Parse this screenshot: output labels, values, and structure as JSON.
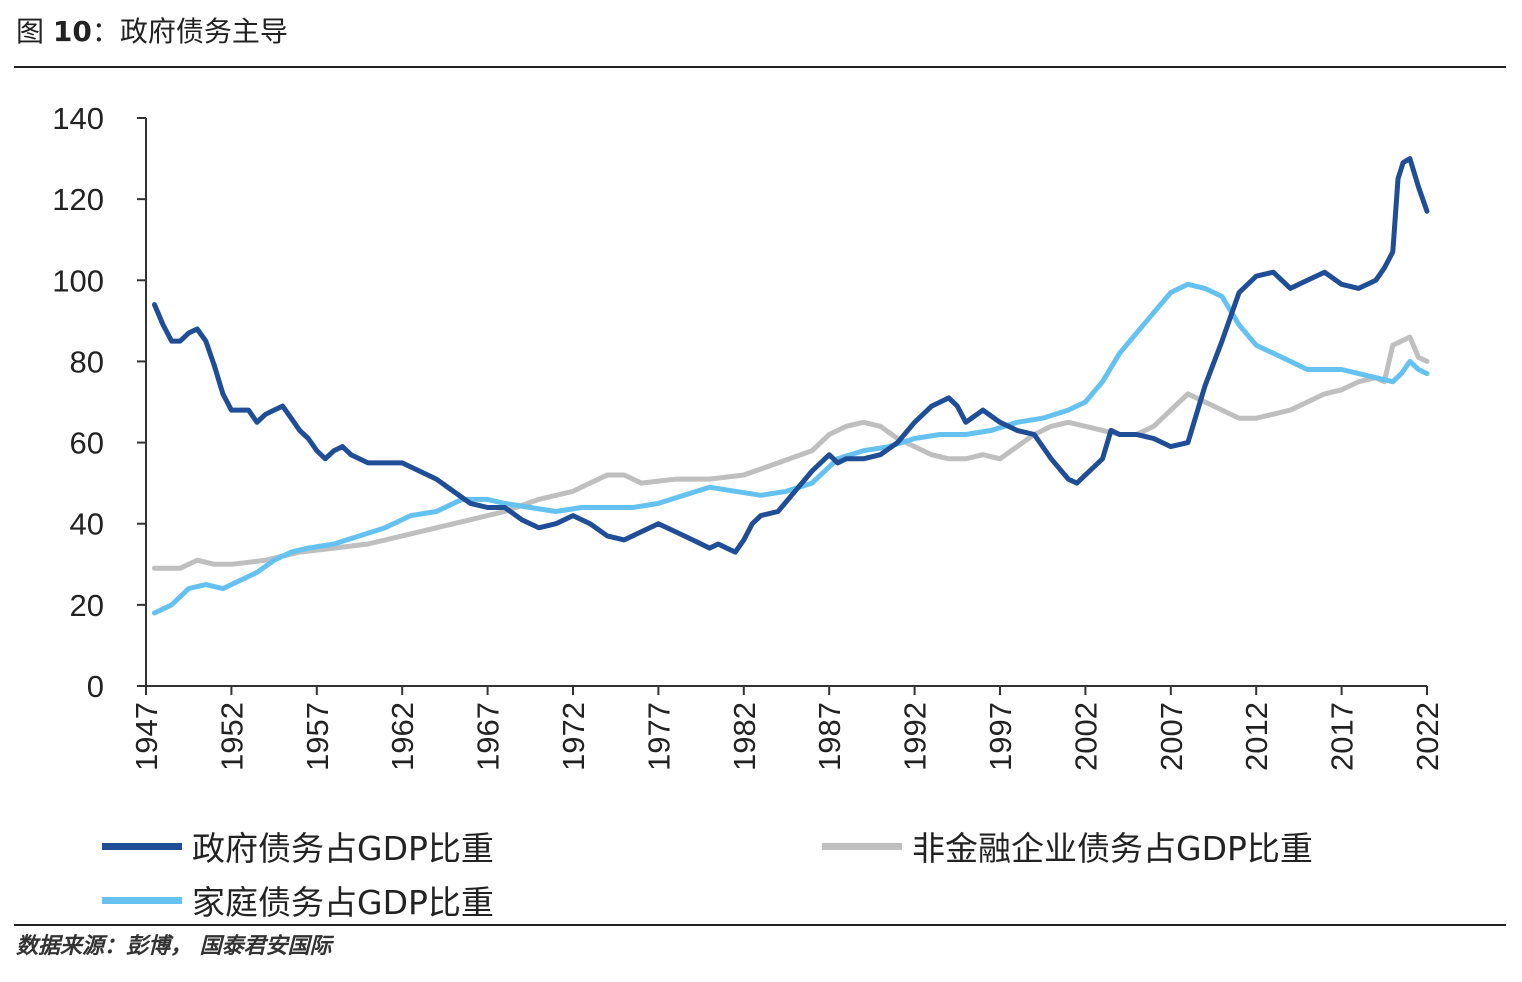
{
  "figure": {
    "label": "图",
    "number": "10",
    "separator": "：",
    "title": "政府债务主导",
    "source": "数据来源：彭博， 国泰君安国际"
  },
  "chart_data": {
    "type": "line",
    "title": "政府债务主导",
    "xlabel": "",
    "ylabel": "",
    "xlim": [
      1947,
      2022
    ],
    "ylim": [
      0,
      140
    ],
    "y_ticks": [
      0,
      20,
      40,
      60,
      80,
      100,
      120,
      140
    ],
    "x_ticks": [
      "1947",
      "1952",
      "1957",
      "1962",
      "1967",
      "1972",
      "1977",
      "1982",
      "1987",
      "1992",
      "1997",
      "2002",
      "2007",
      "2012",
      "2017",
      "2022"
    ],
    "grid": false,
    "legend_position": "bottom",
    "series": [
      {
        "name": "政府债务占GDP比重",
        "color": "#1F4E96",
        "x": [
          1947.5,
          1948,
          1948.5,
          1949,
          1949.5,
          1950,
          1950.5,
          1951,
          1951.5,
          1952,
          1952.5,
          1953,
          1953.5,
          1954,
          1954.5,
          1955,
          1955.5,
          1956,
          1956.5,
          1957,
          1957.5,
          1958,
          1958.5,
          1959,
          1960,
          1961,
          1962,
          1963,
          1964,
          1965,
          1966,
          1967,
          1968,
          1969,
          1970,
          1971,
          1972,
          1973,
          1974,
          1975,
          1976,
          1977,
          1978,
          1979,
          1980,
          1980.5,
          1981,
          1981.5,
          1982,
          1982.5,
          1983,
          1984,
          1985,
          1986,
          1987,
          1987.5,
          1988,
          1989,
          1990,
          1991,
          1992,
          1993,
          1994,
          1994.5,
          1995,
          1996,
          1997,
          1998,
          1999,
          2000,
          2001,
          2001.5,
          2002,
          2003,
          2003.5,
          2004,
          2005,
          2006,
          2007,
          2008,
          2009,
          2010,
          2011,
          2012,
          2013,
          2014,
          2015,
          2016,
          2017,
          2018,
          2019,
          2019.5,
          2020,
          2020.3,
          2020.6,
          2021,
          2021.5,
          2022
        ],
        "values": [
          94,
          89,
          85,
          85,
          87,
          88,
          85,
          79,
          72,
          68,
          68,
          68,
          65,
          67,
          68,
          69,
          66,
          63,
          61,
          58,
          56,
          58,
          59,
          57,
          55,
          55,
          55,
          53,
          51,
          48,
          45,
          44,
          44,
          41,
          39,
          40,
          42,
          40,
          37,
          36,
          38,
          40,
          38,
          36,
          34,
          35,
          34,
          33,
          36,
          40,
          42,
          43,
          48,
          53,
          57,
          55,
          56,
          56,
          57,
          60,
          65,
          69,
          71,
          69,
          65,
          68,
          65,
          63,
          62,
          56,
          51,
          50,
          52,
          56,
          63,
          62,
          62,
          61,
          59,
          60,
          74,
          85,
          97,
          101,
          102,
          98,
          100,
          102,
          99,
          98,
          100,
          103,
          107,
          125,
          129,
          130,
          123,
          117
        ]
      },
      {
        "name": "非金融企业债务占GDP比重",
        "color": "#BFBFBF",
        "x": [
          1947.5,
          1949,
          1950,
          1951,
          1952,
          1954,
          1956,
          1958,
          1960,
          1962,
          1964,
          1966,
          1968,
          1970,
          1972,
          1973,
          1974,
          1975,
          1976,
          1978,
          1980,
          1982,
          1984,
          1986,
          1987,
          1988,
          1989,
          1990,
          1991,
          1992,
          1993,
          1994,
          1995,
          1996,
          1997,
          1998,
          1999,
          2000,
          2001,
          2002,
          2003,
          2004,
          2005,
          2006,
          2007,
          2008,
          2009,
          2010,
          2011,
          2012,
          2013,
          2014,
          2015,
          2016,
          2017,
          2018,
          2019,
          2019.5,
          2020,
          2020.5,
          2021,
          2021.5,
          2022
        ],
        "values": [
          29,
          29,
          31,
          30,
          30,
          31,
          33,
          34,
          35,
          37,
          39,
          41,
          43,
          46,
          48,
          50,
          52,
          52,
          50,
          51,
          51,
          52,
          55,
          58,
          62,
          64,
          65,
          64,
          61,
          59,
          57,
          56,
          56,
          57,
          56,
          59,
          62,
          64,
          65,
          64,
          63,
          62,
          62,
          64,
          68,
          72,
          70,
          68,
          66,
          66,
          67,
          68,
          70,
          72,
          73,
          75,
          76,
          75,
          84,
          85,
          86,
          81,
          80
        ]
      },
      {
        "name": "家庭债务占GDP比重",
        "color": "#65C2F0",
        "x": [
          1947.5,
          1948.5,
          1949.5,
          1950.5,
          1951.5,
          1952.5,
          1953.5,
          1954.5,
          1955.5,
          1956.5,
          1958,
          1959.5,
          1961,
          1962.5,
          1964,
          1965.5,
          1967,
          1968,
          1969.5,
          1971,
          1972.5,
          1974,
          1975.5,
          1977,
          1978.5,
          1980,
          1981.5,
          1983,
          1984.5,
          1986,
          1987.5,
          1989,
          1990.5,
          1992,
          1993.5,
          1995,
          1996.5,
          1998,
          1999.5,
          2001,
          2002,
          2003,
          2004,
          2005,
          2006,
          2007,
          2008,
          2009,
          2010,
          2011,
          2012,
          2013,
          2014,
          2015,
          2016,
          2017,
          2018,
          2019,
          2020,
          2020.5,
          2021,
          2021.5,
          2022
        ],
        "values": [
          18,
          20,
          24,
          25,
          24,
          26,
          28,
          31,
          33,
          34,
          35,
          37,
          39,
          42,
          43,
          46,
          46,
          45,
          44,
          43,
          44,
          44,
          44,
          45,
          47,
          49,
          48,
          47,
          48,
          50,
          56,
          58,
          59,
          61,
          62,
          62,
          63,
          65,
          66,
          68,
          70,
          75,
          82,
          87,
          92,
          97,
          99,
          98,
          96,
          89,
          84,
          82,
          80,
          78,
          78,
          78,
          77,
          76,
          75,
          77,
          80,
          78,
          77
        ]
      }
    ]
  }
}
